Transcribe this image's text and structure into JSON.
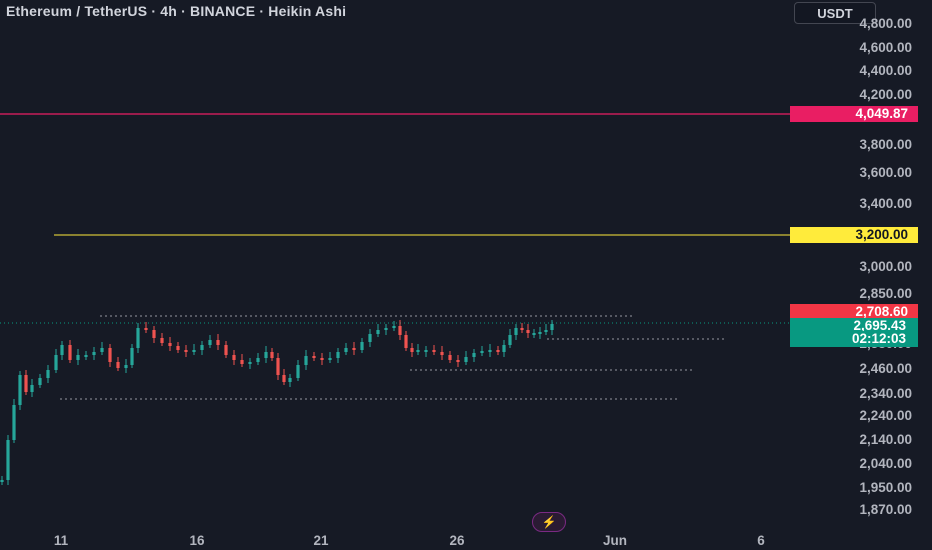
{
  "header": {
    "title": "Ethereum / TetherUS · 4h · BINANCE · Heikin Ashi",
    "currency": "USDT"
  },
  "price_axis": {
    "ticks": [
      "4,800.00",
      "4,600.00",
      "4,400.00",
      "4,200.00",
      "3,800.00",
      "3,600.00",
      "3,400.00",
      "3,000.00",
      "2,850.00",
      "2,580.00",
      "2,460.00",
      "2,340.00",
      "2,240.00",
      "2,140.00",
      "2,040.00",
      "1,950.00",
      "1,870.00"
    ]
  },
  "time_axis": {
    "ticks": [
      "11",
      "16",
      "21",
      "26",
      "Jun",
      "6"
    ]
  },
  "price_tags": {
    "resistance": {
      "value": "4,049.87",
      "color": "#e91e63"
    },
    "level": {
      "value": "3,200.00",
      "color": "#ffeb3b"
    },
    "high": {
      "value": "2,708.60",
      "color": "#f23645"
    },
    "last": {
      "value": "2,695.43",
      "color": "#089981"
    },
    "countdown": {
      "value": "02:12:03",
      "color": "#089981"
    }
  },
  "colors": {
    "background": "#161a25",
    "up_candle": "#26a69a",
    "down_candle": "#ef5350",
    "resistance_line": "#e91e63",
    "level_line": "#ffeb3b"
  },
  "icons": {
    "replay": "lightning-icon"
  }
}
